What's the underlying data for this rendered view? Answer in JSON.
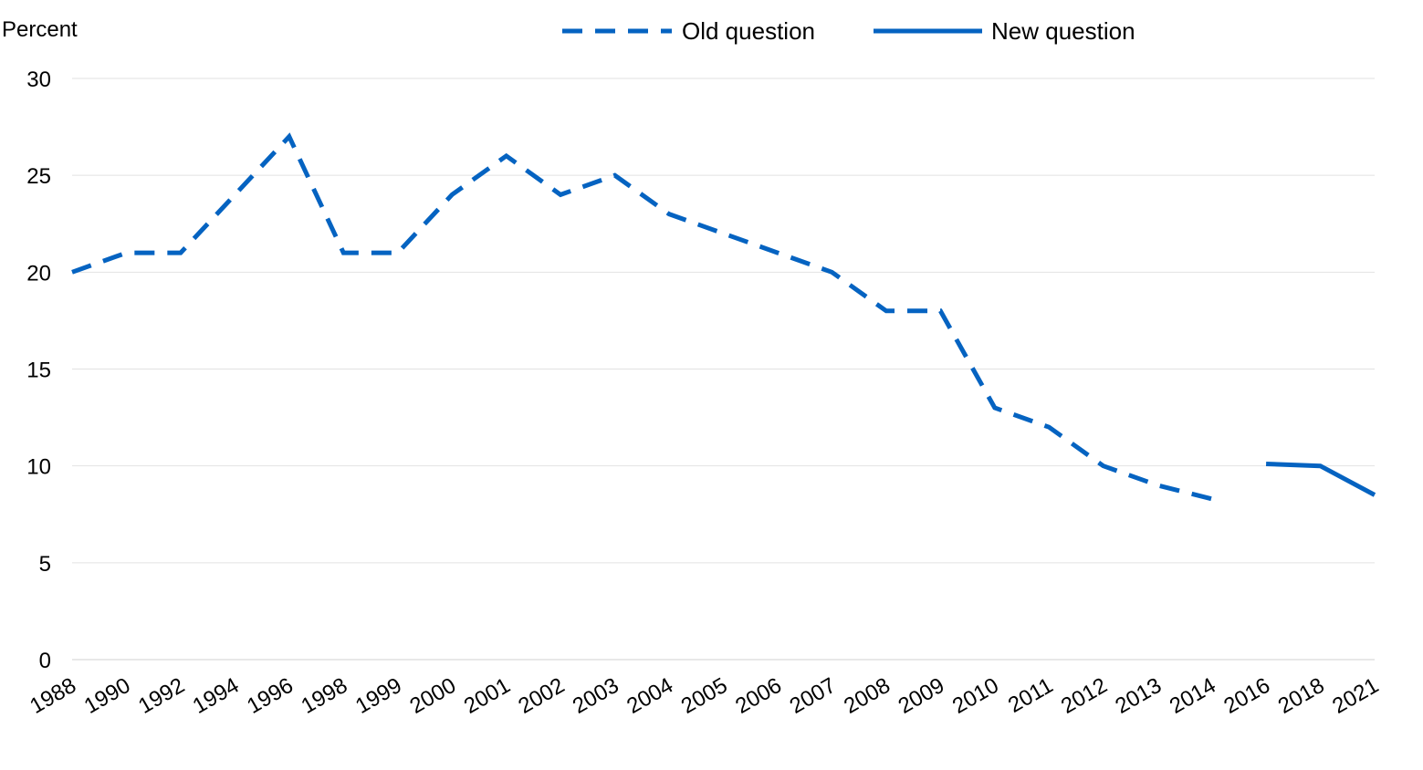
{
  "chart_data": {
    "type": "line",
    "title": "",
    "ylabel": "Percent",
    "xlabel": "",
    "ylim": [
      0,
      30
    ],
    "yticks": [
      0,
      5,
      10,
      15,
      20,
      25,
      30
    ],
    "grid": true,
    "legend_position": "top",
    "categories": [
      "1988",
      "1990",
      "1992",
      "1994",
      "1996",
      "1998",
      "1999",
      "2000",
      "2001",
      "2002",
      "2003",
      "2004",
      "2005",
      "2006",
      "2007",
      "2008",
      "2009",
      "2010",
      "2011",
      "2012",
      "2013",
      "2014",
      "2016",
      "2018",
      "2021"
    ],
    "series": [
      {
        "name": "Old question",
        "style": "dashed",
        "color": "#0563C1",
        "points": [
          {
            "x": "1988",
            "y": 20
          },
          {
            "x": "1990",
            "y": 21
          },
          {
            "x": "1992",
            "y": 21
          },
          {
            "x": "1994",
            "y": 24
          },
          {
            "x": "1996",
            "y": 27
          },
          {
            "x": "1998",
            "y": 21
          },
          {
            "x": "1999",
            "y": 21
          },
          {
            "x": "2000",
            "y": 24
          },
          {
            "x": "2001",
            "y": 26
          },
          {
            "x": "2002",
            "y": 24
          },
          {
            "x": "2003",
            "y": 25
          },
          {
            "x": "2004",
            "y": 23
          },
          {
            "x": "2005",
            "y": 22
          },
          {
            "x": "2006",
            "y": 21
          },
          {
            "x": "2007",
            "y": 20
          },
          {
            "x": "2008",
            "y": 18
          },
          {
            "x": "2009",
            "y": 18
          },
          {
            "x": "2010",
            "y": 13
          },
          {
            "x": "2011",
            "y": 12
          },
          {
            "x": "2012",
            "y": 10
          },
          {
            "x": "2013",
            "y": 9
          },
          {
            "x": "2014",
            "y": 8.3
          }
        ]
      },
      {
        "name": "New question",
        "style": "solid",
        "color": "#0563C1",
        "points": [
          {
            "x": "2016",
            "y": 10.1
          },
          {
            "x": "2018",
            "y": 10
          },
          {
            "x": "2021",
            "y": 8.5
          }
        ]
      }
    ]
  }
}
